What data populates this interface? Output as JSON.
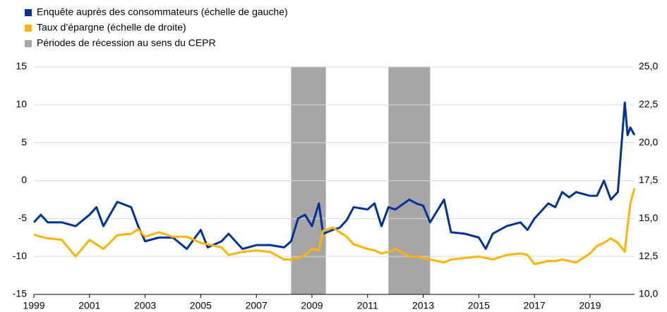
{
  "chart_data": {
    "type": "line",
    "x": [
      1999,
      1999.25,
      1999.5,
      2000,
      2000.5,
      2001,
      2001.25,
      2001.5,
      2002,
      2002.5,
      2002.75,
      2003,
      2003.5,
      2004,
      2004.5,
      2005,
      2005.25,
      2005.75,
      2006,
      2006.5,
      2007,
      2007.5,
      2008,
      2008.25,
      2008.5,
      2008.75,
      2009,
      2009.25,
      2009.4,
      2009.75,
      2010,
      2010.25,
      2010.5,
      2011,
      2011.25,
      2011.5,
      2011.75,
      2012,
      2012.5,
      2012.75,
      2013,
      2013.25,
      2013.75,
      2014,
      2014.5,
      2015,
      2015.25,
      2015.5,
      2016,
      2016.5,
      2016.75,
      2017,
      2017.5,
      2017.75,
      2018,
      2018.25,
      2018.5,
      2019,
      2019.25,
      2019.5,
      2019.75,
      2020,
      2020.25,
      2020.35,
      2020.45,
      2020.6
    ],
    "series": [
      {
        "name": "Enquête auprès des consommateurs (échelle de gauche)",
        "color": "#003299",
        "axis": "y",
        "values": [
          -5.5,
          -4.5,
          -5.5,
          -5.5,
          -6,
          -4.5,
          -3.5,
          -6,
          -2.8,
          -3.5,
          -6,
          -8,
          -7.5,
          -7.5,
          -9,
          -6.5,
          -8.8,
          -8,
          -7,
          -9,
          -8.5,
          -8.5,
          -8.8,
          -8,
          -5,
          -4.5,
          -6,
          -3,
          -7,
          -6.5,
          -6.2,
          -5.2,
          -3.5,
          -3.8,
          -3,
          -6,
          -3.5,
          -3.8,
          -2.5,
          -3,
          -3.3,
          -5.5,
          -2.5,
          -6.8,
          -7,
          -7.5,
          -9,
          -7,
          -6,
          -5.5,
          -6.5,
          -5,
          -3,
          -3.5,
          -1.5,
          -2.2,
          -1.5,
          -2,
          -2,
          0,
          -2.5,
          -1.5,
          10.3,
          6,
          7,
          6
        ]
      },
      {
        "name": "Taux d’épargne (échelle de droite)",
        "color": "#ffb400",
        "axis": "y2",
        "values": [
          13.95,
          13.8,
          13.7,
          13.6,
          12.5,
          13.6,
          13.3,
          13.0,
          13.9,
          14.0,
          14.3,
          13.8,
          14.1,
          13.8,
          13.8,
          13.4,
          13.3,
          13.1,
          12.6,
          12.8,
          12.9,
          12.8,
          12.3,
          12.3,
          12.4,
          12.6,
          13.0,
          12.9,
          14.2,
          14.4,
          14.1,
          13.8,
          13.3,
          13.0,
          12.9,
          12.7,
          12.8,
          13.0,
          12.5,
          12.5,
          12.4,
          12.3,
          12.1,
          12.3,
          12.4,
          12.5,
          12.4,
          12.3,
          12.6,
          12.7,
          12.6,
          12.0,
          12.2,
          12.2,
          12.3,
          12.2,
          12.1,
          12.7,
          13.2,
          13.4,
          13.7,
          13.4,
          12.8,
          14.5,
          16.0,
          17.0
        ]
      }
    ],
    "shading": {
      "name": "Périodes de récession au sens du CEPR",
      "color": "#a6a6a6",
      "periods": [
        [
          2008.25,
          2009.5
        ],
        [
          2011.75,
          2013.25
        ]
      ]
    },
    "xlim": [
      1999,
      2020.6
    ],
    "xticks": [
      1999,
      2001,
      2003,
      2005,
      2007,
      2009,
      2011,
      2013,
      2015,
      2017,
      2019
    ],
    "ylim": [
      -15,
      15
    ],
    "yticks": [
      -15,
      -10,
      -5,
      0,
      5,
      10,
      15
    ],
    "y2lim": [
      10,
      25
    ],
    "y2ticks": [
      {
        "value": 10,
        "label": "10,0"
      },
      {
        "value": 12.5,
        "label": "12,5"
      },
      {
        "value": 15,
        "label": "15,0"
      },
      {
        "value": 17.5,
        "label": "17,5"
      },
      {
        "value": 20,
        "label": "20,0"
      },
      {
        "value": 22.5,
        "label": "22,5"
      },
      {
        "value": 25,
        "label": "25,0"
      }
    ],
    "grid": true
  }
}
